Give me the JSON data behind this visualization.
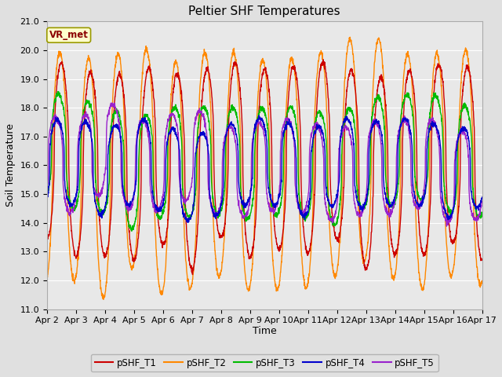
{
  "title": "Peltier SHF Temperatures",
  "ylabel": "Soil Temperature",
  "xlabel": "Time",
  "ylim": [
    11.0,
    21.0
  ],
  "yticks": [
    11.0,
    12.0,
    13.0,
    14.0,
    15.0,
    16.0,
    17.0,
    18.0,
    19.0,
    20.0,
    21.0
  ],
  "xtick_labels": [
    "Apr 2",
    "Apr 3",
    "Apr 4",
    "Apr 5",
    "Apr 6",
    "Apr 7",
    "Apr 8",
    "Apr 9",
    "Apr 10",
    "Apr 11",
    "Apr 12",
    "Apr 13",
    "Apr 14",
    "Apr 15",
    "Apr 16",
    "Apr 17"
  ],
  "colors": {
    "T1": "#CC0000",
    "T2": "#FF8800",
    "T3": "#00BB00",
    "T4": "#0000CC",
    "T5": "#9922CC"
  },
  "legend_labels": [
    "pSHF_T1",
    "pSHF_T2",
    "pSHF_T3",
    "pSHF_T4",
    "pSHF_T5"
  ],
  "annotation_text": "VR_met",
  "fig_bg_color": "#E0E0E0",
  "plot_bg_color": "#E8E8E8",
  "grid_color": "#FFFFFF",
  "title_fontsize": 11,
  "axis_fontsize": 9,
  "tick_fontsize": 8
}
